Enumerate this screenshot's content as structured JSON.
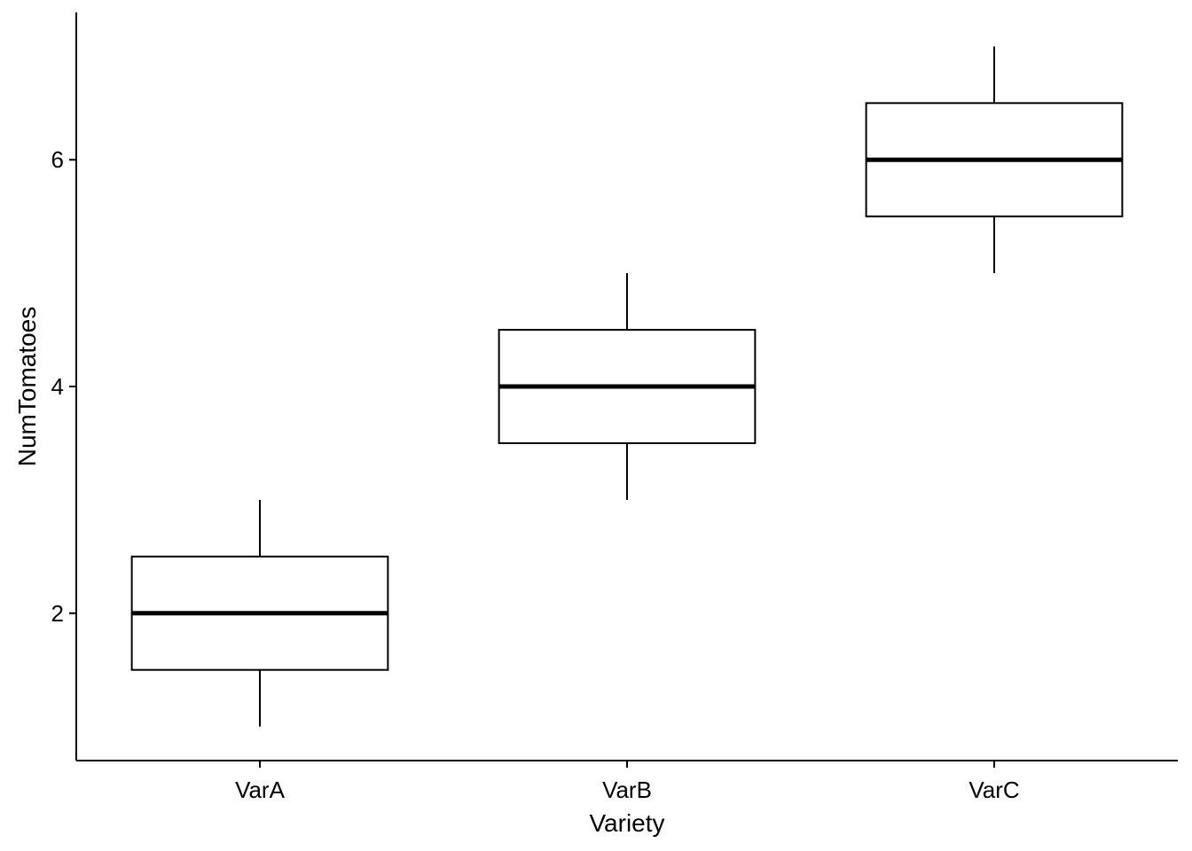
{
  "chart_data": {
    "type": "boxplot",
    "xlabel": "Variety",
    "ylabel": "NumTomatoes",
    "categories": [
      "VarA",
      "VarB",
      "VarC"
    ],
    "boxes": [
      {
        "category": "VarA",
        "min": 1,
        "q1": 1.5,
        "median": 2,
        "q3": 2.5,
        "max": 3
      },
      {
        "category": "VarB",
        "min": 3,
        "q1": 3.5,
        "median": 4,
        "q3": 4.5,
        "max": 5
      },
      {
        "category": "VarC",
        "min": 5,
        "q1": 5.5,
        "median": 6,
        "q3": 6.5,
        "max": 7
      }
    ],
    "ylim": [
      0.7,
      7.3
    ],
    "yticks": [
      2,
      4,
      6
    ],
    "grid": false,
    "colors": {
      "line": "#000000",
      "fill": "#ffffff",
      "background": "#ffffff"
    }
  }
}
